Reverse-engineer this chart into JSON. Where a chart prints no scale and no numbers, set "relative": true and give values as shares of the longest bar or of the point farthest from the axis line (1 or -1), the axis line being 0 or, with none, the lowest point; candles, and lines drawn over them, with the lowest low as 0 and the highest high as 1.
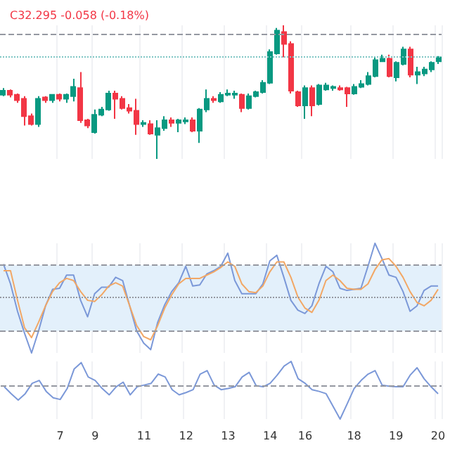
{
  "chart_data": [
    {
      "type": "candlestick",
      "title": "C32.295 -0.058 (-0.18%)",
      "relative": true,
      "grid": "x",
      "tick_labels": false,
      "categories": [
        null,
        null,
        null,
        null,
        null,
        null,
        null,
        null,
        "7",
        null,
        null,
        null,
        null,
        "9",
        null,
        null,
        null,
        null,
        null,
        null,
        "11",
        null,
        null,
        null,
        null,
        null,
        "12",
        null,
        null,
        null,
        null,
        null,
        "13",
        null,
        null,
        null,
        null,
        null,
        "14",
        null,
        null,
        null,
        null,
        "16",
        null,
        null,
        null,
        null,
        null,
        null,
        "18",
        null,
        null,
        null,
        null,
        null,
        "19",
        null,
        null,
        null,
        null,
        null,
        "20"
      ],
      "ohlc": [
        [
          0.48,
          0.53,
          0.47,
          0.51
        ],
        [
          0.51,
          0.52,
          0.46,
          0.48
        ],
        [
          0.48,
          0.49,
          0.42,
          0.44
        ],
        [
          0.45,
          0.47,
          0.25,
          0.32
        ],
        [
          0.32,
          0.34,
          0.25,
          0.26
        ],
        [
          0.26,
          0.47,
          0.24,
          0.45
        ],
        [
          0.46,
          0.47,
          0.42,
          0.44
        ],
        [
          0.44,
          0.48,
          0.42,
          0.48
        ],
        [
          0.48,
          0.49,
          0.43,
          0.45
        ],
        [
          0.45,
          0.49,
          0.42,
          0.48
        ],
        [
          0.47,
          0.6,
          0.43,
          0.54
        ],
        [
          0.53,
          0.65,
          0.27,
          0.29
        ],
        [
          0.29,
          0.3,
          0.23,
          0.25
        ],
        [
          0.2,
          0.37,
          0.19,
          0.33
        ],
        [
          0.33,
          0.39,
          0.32,
          0.37
        ],
        [
          0.37,
          0.51,
          0.36,
          0.49
        ],
        [
          0.49,
          0.51,
          0.3,
          0.45
        ],
        [
          0.45,
          0.47,
          0.37,
          0.38
        ],
        [
          0.38,
          0.41,
          0.34,
          0.36
        ],
        [
          0.36,
          0.45,
          0.18,
          0.26
        ],
        [
          0.26,
          0.29,
          0.24,
          0.27
        ],
        [
          0.26,
          0.29,
          0.18,
          0.19
        ],
        [
          0.18,
          0.29,
          0,
          0.23
        ],
        [
          0.23,
          0.32,
          0.21,
          0.29
        ],
        [
          0.29,
          0.31,
          0.24,
          0.27
        ],
        [
          0.27,
          0.3,
          0.2,
          0.29
        ],
        [
          0.28,
          0.31,
          0.26,
          0.29
        ],
        [
          0.29,
          0.31,
          0.2,
          0.21
        ],
        [
          0.21,
          0.38,
          0.12,
          0.37
        ],
        [
          0.37,
          0.52,
          0.35,
          0.45
        ],
        [
          0.45,
          0.47,
          0.42,
          0.44
        ],
        [
          0.43,
          0.5,
          0.42,
          0.48
        ],
        [
          0.48,
          0.52,
          0.47,
          0.49
        ],
        [
          0.48,
          0.51,
          0.45,
          0.49
        ],
        [
          0.48,
          0.49,
          0.35,
          0.38
        ],
        [
          0.38,
          0.49,
          0.37,
          0.47
        ],
        [
          0.47,
          0.51,
          0.46,
          0.5
        ],
        [
          0.5,
          0.59,
          0.49,
          0.57
        ],
        [
          0.57,
          0.82,
          0.56,
          0.8
        ],
        [
          0.79,
          0.98,
          0.78,
          0.96
        ],
        [
          0.95,
          1.0,
          0.76,
          0.86
        ],
        [
          0.86,
          0.88,
          0.49,
          0.51
        ],
        [
          0.5,
          0.51,
          0.39,
          0.4
        ],
        [
          0.4,
          0.55,
          0.3,
          0.53
        ],
        [
          0.53,
          0.55,
          0.32,
          0.4
        ],
        [
          0.41,
          0.56,
          0.4,
          0.55
        ],
        [
          0.52,
          0.57,
          0.51,
          0.55
        ],
        [
          0.53,
          0.55,
          0.51,
          0.54
        ],
        [
          0.53,
          0.55,
          0.51,
          0.52
        ],
        [
          0.53,
          0.54,
          0.39,
          0.49
        ],
        [
          0.49,
          0.56,
          0.48,
          0.54
        ],
        [
          0.54,
          0.59,
          0.53,
          0.56
        ],
        [
          0.56,
          0.65,
          0.55,
          0.62
        ],
        [
          0.62,
          0.76,
          0.61,
          0.74
        ],
        [
          0.73,
          0.78,
          0.73,
          0.75
        ],
        [
          0.75,
          0.78,
          0.61,
          0.62
        ],
        [
          0.61,
          0.73,
          0.58,
          0.72
        ],
        [
          0.71,
          0.84,
          0.7,
          0.82
        ],
        [
          0.82,
          0.84,
          0.61,
          0.63
        ],
        [
          0.63,
          0.69,
          0.56,
          0.65
        ],
        [
          0.64,
          0.69,
          0.62,
          0.67
        ],
        [
          0.67,
          0.73,
          0.65,
          0.72
        ],
        [
          0.73,
          0.77,
          0.71,
          0.76
        ]
      ],
      "ref_lines": [
        {
          "axis": "y",
          "value": 0.93,
          "color": "#9598a1",
          "line_style": "dashed"
        },
        {
          "axis": "y",
          "value": 0.77,
          "color": "#7fc6c4",
          "line_style": "dotted"
        }
      ]
    },
    {
      "type": "line",
      "relative": true,
      "grid": "x",
      "tick_labels": false,
      "marker": "none",
      "line_style": "solid",
      "categories": [
        null,
        null,
        null,
        null,
        null,
        null,
        null,
        null,
        "7",
        null,
        null,
        null,
        null,
        "9",
        null,
        null,
        null,
        null,
        null,
        null,
        "11",
        null,
        null,
        null,
        null,
        null,
        "12",
        null,
        null,
        null,
        null,
        null,
        "13",
        null,
        null,
        null,
        null,
        null,
        "14",
        null,
        null,
        null,
        null,
        "16",
        null,
        null,
        null,
        null,
        null,
        null,
        "18",
        null,
        null,
        null,
        null,
        null,
        "19",
        null,
        null,
        null,
        null,
        null,
        "20"
      ],
      "series": [
        {
          "color": "#7b98d8",
          "values": [
            0.81,
            0.63,
            0.38,
            0.18,
            0,
            0.2,
            0.43,
            0.58,
            0.59,
            0.71,
            0.71,
            0.48,
            0.33,
            0.54,
            0.6,
            0.6,
            0.69,
            0.66,
            0.43,
            0.2,
            0.09,
            0.03,
            0.28,
            0.44,
            0.56,
            0.64,
            0.79,
            0.61,
            0.62,
            0.72,
            0.75,
            0.79,
            0.91,
            0.66,
            0.54,
            0.54,
            0.54,
            0.63,
            0.84,
            0.89,
            0.69,
            0.48,
            0.39,
            0.36,
            0.43,
            0.63,
            0.79,
            0.74,
            0.59,
            0.57,
            0.58,
            0.59,
            0.79,
            1.0,
            0.86,
            0.71,
            0.69,
            0.56,
            0.38,
            0.43,
            0.57,
            0.61,
            0.61
          ]
        },
        {
          "color": "#f2a765",
          "values": [
            0.75,
            0.75,
            0.48,
            0.23,
            0.14,
            0.28,
            0.43,
            0.56,
            0.64,
            0.68,
            0.66,
            0.56,
            0.48,
            0.47,
            0.53,
            0.61,
            0.64,
            0.61,
            0.43,
            0.25,
            0.15,
            0.12,
            0.25,
            0.41,
            0.53,
            0.63,
            0.68,
            0.68,
            0.68,
            0.71,
            0.74,
            0.78,
            0.83,
            0.79,
            0.63,
            0.56,
            0.55,
            0.61,
            0.74,
            0.83,
            0.83,
            0.69,
            0.51,
            0.41,
            0.37,
            0.48,
            0.66,
            0.71,
            0.66,
            0.59,
            0.58,
            0.58,
            0.63,
            0.76,
            0.85,
            0.86,
            0.79,
            0.69,
            0.56,
            0.46,
            0.43,
            0.48,
            0.58
          ]
        }
      ],
      "bands": [
        {
          "axis": "y",
          "from": 0.2,
          "to": 0.8,
          "color": "#e3f0fb"
        }
      ],
      "ref_lines": [
        {
          "axis": "y",
          "value": 0.8,
          "color": "#9598a1",
          "line_style": "dashed"
        },
        {
          "axis": "y",
          "value": 0.51,
          "color": "#9598a1",
          "line_style": "dotted"
        },
        {
          "axis": "y",
          "value": 0.2,
          "color": "#9598a1",
          "line_style": "dashed"
        }
      ]
    },
    {
      "type": "line",
      "relative": true,
      "grid": "x",
      "tick_labels": "x",
      "marker": "none",
      "line_style": "solid",
      "categories": [
        null,
        null,
        null,
        null,
        null,
        null,
        null,
        null,
        "7",
        null,
        null,
        null,
        null,
        "9",
        null,
        null,
        null,
        null,
        null,
        null,
        "11",
        null,
        null,
        null,
        null,
        null,
        "12",
        null,
        null,
        null,
        null,
        null,
        "13",
        null,
        null,
        null,
        null,
        null,
        "14",
        null,
        null,
        null,
        null,
        "16",
        null,
        null,
        null,
        null,
        null,
        null,
        "18",
        null,
        null,
        null,
        null,
        null,
        "19",
        null,
        null,
        null,
        null,
        null,
        "20"
      ],
      "series": [
        {
          "color": "#7b98d8",
          "values": [
            0.56,
            0.44,
            0.33,
            0.44,
            0.62,
            0.67,
            0.48,
            0.37,
            0.34,
            0.53,
            0.87,
            0.98,
            0.73,
            0.67,
            0.53,
            0.42,
            0.56,
            0.64,
            0.42,
            0.56,
            0.59,
            0.62,
            0.78,
            0.73,
            0.51,
            0.42,
            0.46,
            0.51,
            0.78,
            0.84,
            0.59,
            0.51,
            0.53,
            0.56,
            0.73,
            0.81,
            0.58,
            0.56,
            0.62,
            0.76,
            0.92,
            1,
            0.7,
            0.62,
            0.51,
            0.48,
            0.44,
            0.22,
            0,
            0.26,
            0.53,
            0.67,
            0.78,
            0.84,
            0.59,
            0.57,
            0.56,
            0.56,
            0.76,
            0.89,
            0.7,
            0.56,
            0.44
          ]
        }
      ],
      "ref_lines": [
        {
          "axis": "y",
          "value": 0.59,
          "color": "#9598a1",
          "line_style": "dashed"
        }
      ]
    }
  ]
}
